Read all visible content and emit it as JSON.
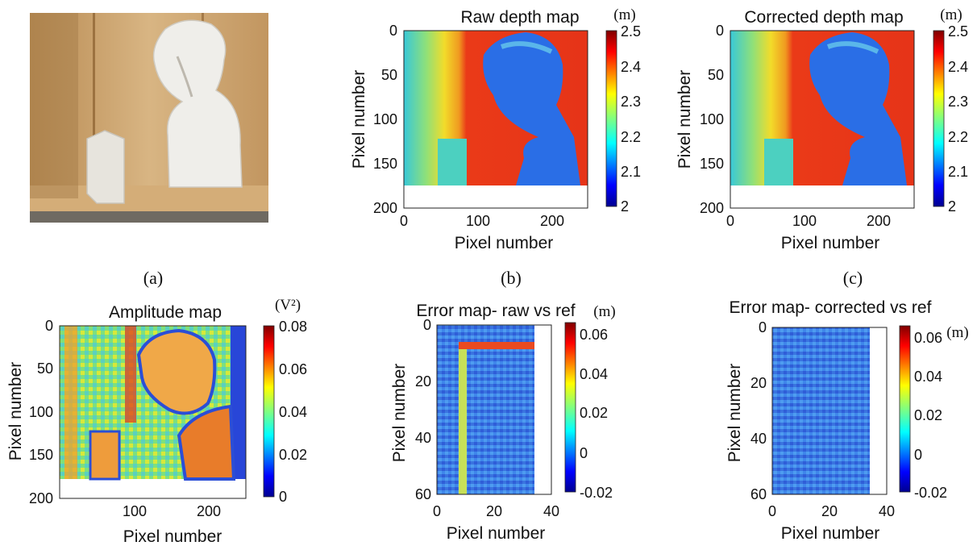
{
  "figure": {
    "panel_labels": [
      "(a)",
      "(b)",
      "(c)"
    ],
    "photo": {
      "label": "(a)"
    }
  },
  "panels": {
    "b": {
      "title": "Raw depth map",
      "unit": "(m)",
      "xlabel": "Pixel number",
      "ylabel": "Pixel number",
      "xticks": [
        "0",
        "100",
        "200"
      ],
      "yticks": [
        "0",
        "50",
        "100",
        "150",
        "200"
      ],
      "cbar_ticks": [
        "2.5",
        "2.4",
        "2.3",
        "2.2",
        "2.1",
        "2"
      ]
    },
    "c": {
      "title": "Corrected depth map",
      "unit": "(m)",
      "xlabel": "Pixel number",
      "ylabel": "Pixel number",
      "xticks": [
        "0",
        "100",
        "200"
      ],
      "yticks": [
        "0",
        "50",
        "100",
        "150",
        "200"
      ],
      "cbar_ticks": [
        "2.5",
        "2.4",
        "2.3",
        "2.2",
        "2.1",
        "2"
      ]
    },
    "d": {
      "title": "Amplitude map",
      "unit": "(V²)",
      "xlabel": "Pixel number",
      "ylabel": "Pixel number",
      "xticks": [
        "100",
        "200"
      ],
      "yticks": [
        "0",
        "50",
        "100",
        "150",
        "200"
      ],
      "cbar_ticks": [
        "0.08",
        "0.06",
        "0.04",
        "0.02",
        "0"
      ]
    },
    "e": {
      "title": "Error map- raw vs ref",
      "unit": "(m)",
      "xlabel": "Pixel number",
      "ylabel": "Pixel number",
      "xticks": [
        "0",
        "20",
        "40"
      ],
      "yticks": [
        "0",
        "20",
        "40",
        "60"
      ],
      "cbar_ticks": [
        "0.06",
        "0.04",
        "0.02",
        "0",
        "-0.02"
      ]
    },
    "f": {
      "title": "Error map- corrected vs ref",
      "unit": "(m)",
      "xlabel": "Pixel number",
      "ylabel": "Pixel number",
      "xticks": [
        "0",
        "20",
        "40"
      ],
      "yticks": [
        "0",
        "20",
        "40",
        "60"
      ],
      "cbar_ticks": [
        "0.06",
        "0.04",
        "0.02",
        "0",
        "-0.02"
      ]
    }
  },
  "chart_data": [
    {
      "type": "heatmap",
      "title": "Raw depth map",
      "xlabel": "Pixel number",
      "ylabel": "Pixel number",
      "xlim": [
        0,
        250
      ],
      "ylim": [
        0,
        200
      ],
      "clim": [
        2,
        2.5
      ],
      "colorbar_unit": "(m)",
      "colormap": "jet"
    },
    {
      "type": "heatmap",
      "title": "Corrected depth map",
      "xlabel": "Pixel number",
      "ylabel": "Pixel number",
      "xlim": [
        0,
        250
      ],
      "ylim": [
        0,
        200
      ],
      "clim": [
        2,
        2.5
      ],
      "colorbar_unit": "(m)",
      "colormap": "jet"
    },
    {
      "type": "heatmap",
      "title": "Amplitude map",
      "xlabel": "Pixel number",
      "ylabel": "Pixel number",
      "xlim": [
        0,
        250
      ],
      "ylim": [
        0,
        200
      ],
      "clim": [
        0,
        0.08
      ],
      "colorbar_unit": "(V²)",
      "colormap": "jet"
    },
    {
      "type": "heatmap",
      "title": "Error map- raw vs ref",
      "xlabel": "Pixel number",
      "ylabel": "Pixel number",
      "xlim": [
        0,
        40
      ],
      "ylim": [
        0,
        60
      ],
      "clim": [
        -0.02,
        0.065
      ],
      "colorbar_unit": "(m)",
      "colormap": "jet"
    },
    {
      "type": "heatmap",
      "title": "Error map- corrected vs ref",
      "xlabel": "Pixel number",
      "ylabel": "Pixel number",
      "xlim": [
        0,
        40
      ],
      "ylim": [
        0,
        60
      ],
      "clim": [
        -0.02,
        0.065
      ],
      "colorbar_unit": "(m)",
      "colormap": "jet"
    }
  ],
  "colors": {
    "jet_red": "#d0101a",
    "jet_blue": "#1414d2",
    "jet_cyan": "#29c9e8",
    "jet_yellow": "#e8e02a",
    "wood": "#c9a06a"
  }
}
